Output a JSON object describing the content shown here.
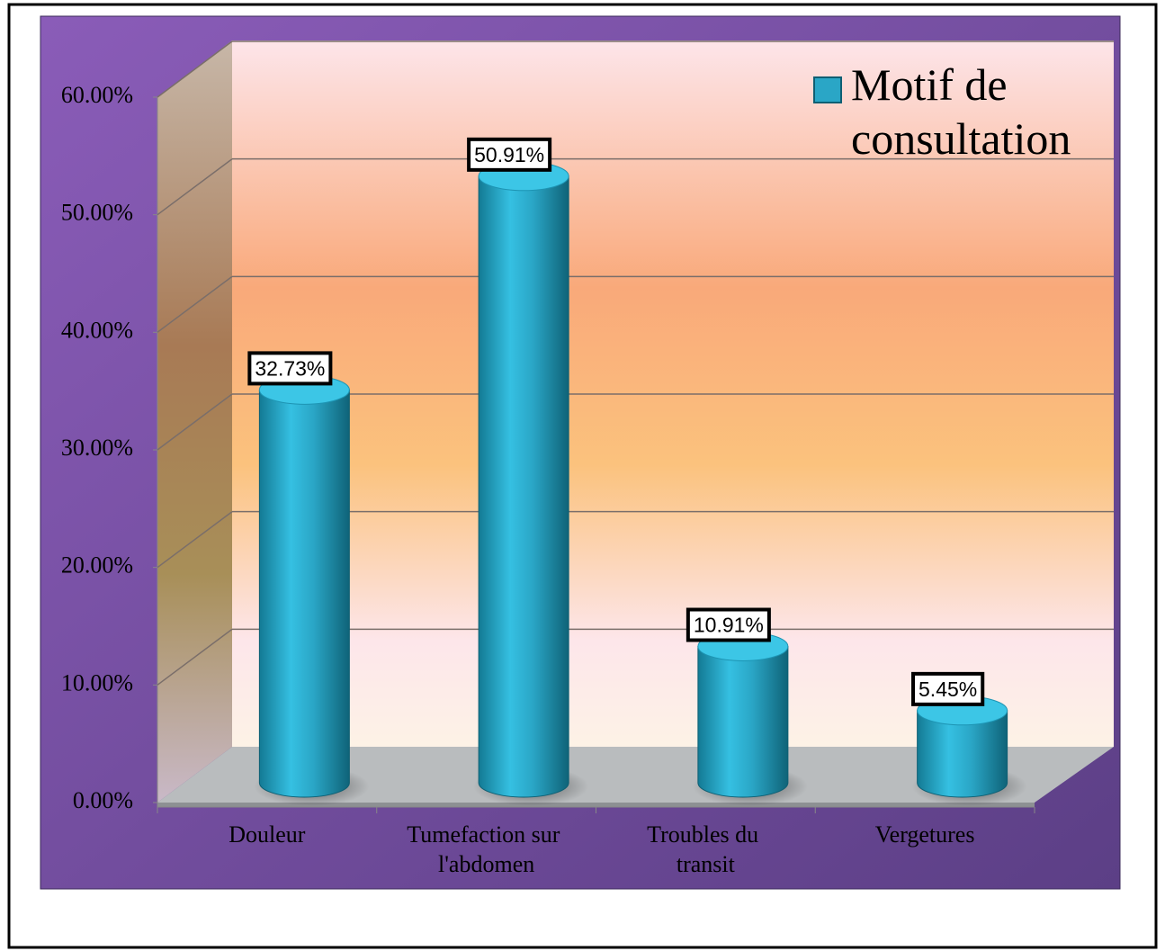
{
  "chart_data": {
    "type": "bar3d",
    "categories": [
      "Douleur",
      "Tumefaction sur l'abdomen",
      "Troubles du transit",
      "Vergetures"
    ],
    "series": [
      {
        "name": "Motif de consultation",
        "color": "#2aa6c6",
        "values": [
          32.73,
          50.91,
          10.91,
          5.45
        ],
        "value_labels": [
          "32.73%",
          "50.91%",
          "10.91%",
          "5.45%"
        ]
      }
    ],
    "ylim": [
      0,
      60
    ],
    "yticks": [
      {
        "value": 0,
        "label": "0.00%"
      },
      {
        "value": 10,
        "label": "10.00%"
      },
      {
        "value": 20,
        "label": "20.00%"
      },
      {
        "value": 30,
        "label": "30.00%"
      },
      {
        "value": 40,
        "label": "40.00%"
      },
      {
        "value": 50,
        "label": "50.00%"
      },
      {
        "value": 60,
        "label": "60.00%"
      }
    ],
    "grid": true,
    "legend": "top-right"
  }
}
